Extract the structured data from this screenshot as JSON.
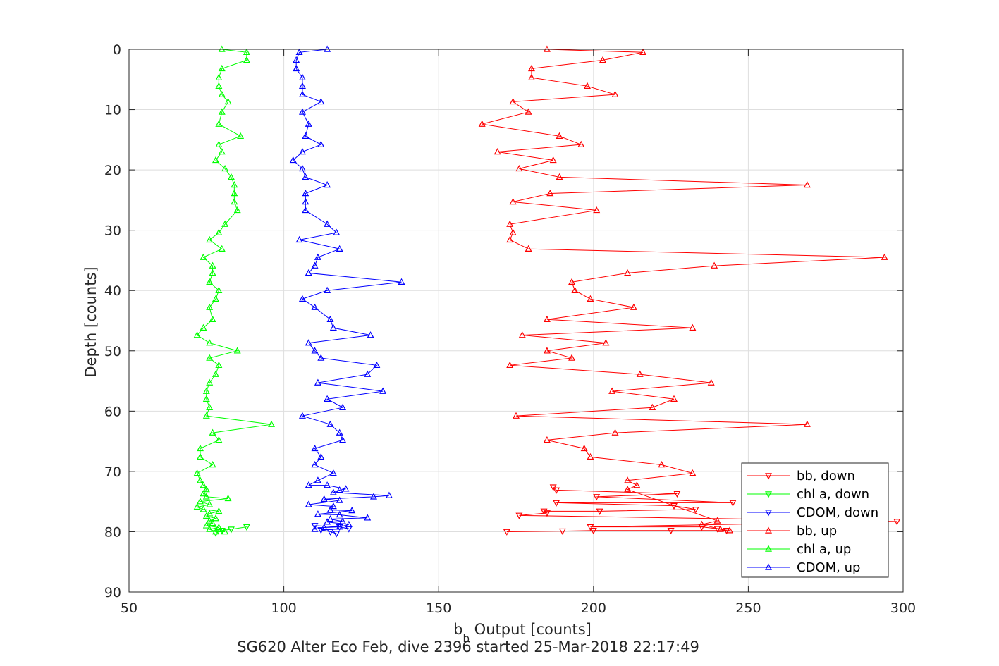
{
  "chart_data": {
    "type": "line",
    "xlabel": "b",
    "xlabel_sub": "b",
    "xlabel_rest": " Output [counts]",
    "ylabel": "Depth [counts]",
    "title_bottom": "SG620 Alter Eco Feb, dive 2396 started 25-Mar-2018 22:17:49",
    "xlim": [
      50,
      300
    ],
    "ylim": [
      0,
      90
    ],
    "y_reversed": true,
    "xticks": [
      50,
      100,
      150,
      200,
      250,
      300
    ],
    "yticks": [
      0,
      10,
      20,
      30,
      40,
      50,
      60,
      70,
      80,
      90
    ],
    "grid": true,
    "legend_position": "bottom-right",
    "colors": {
      "red": "#ff0000",
      "green": "#00ff00",
      "blue": "#0000ff"
    },
    "series": [
      {
        "name": "bb, down",
        "color": "#ff0000",
        "marker": "triangle-down",
        "points": [
          [
            172,
            80
          ],
          [
            190,
            79.9
          ],
          [
            200,
            79.8
          ],
          [
            225,
            79.8
          ],
          [
            243,
            79.8
          ],
          [
            240,
            79.5
          ],
          [
            235,
            79.2
          ],
          [
            199,
            79.2
          ],
          [
            298,
            78.3
          ],
          [
            176,
            77.3
          ],
          [
            185,
            76.9
          ],
          [
            184,
            76.6
          ],
          [
            202,
            76.6
          ],
          [
            233,
            76.3
          ],
          [
            226,
            75.7
          ],
          [
            188,
            75.2
          ],
          [
            245,
            75.2
          ],
          [
            201,
            74.2
          ],
          [
            227,
            73.7
          ],
          [
            188,
            73.1
          ],
          [
            187,
            72.6
          ]
        ]
      },
      {
        "name": "chl a, down",
        "color": "#00ff00",
        "marker": "triangle-down",
        "points": [
          [
            78,
            80.2
          ],
          [
            80,
            79.8
          ],
          [
            83,
            79.6
          ],
          [
            88,
            79.2
          ]
        ]
      },
      {
        "name": "CDOM, down",
        "color": "#0000ff",
        "marker": "triangle-down",
        "points": [
          [
            117,
            80.3
          ],
          [
            115,
            80
          ],
          [
            112,
            79.7
          ],
          [
            121,
            79.5
          ],
          [
            118,
            79.2
          ],
          [
            110,
            79
          ]
        ]
      },
      {
        "name": "bb, up",
        "color": "#ff0000",
        "marker": "triangle-up",
        "points": [
          [
            185,
            0
          ],
          [
            216,
            0.5
          ],
          [
            203,
            1.8
          ],
          [
            180,
            3.2
          ],
          [
            180,
            4.7
          ],
          [
            198,
            6.1
          ],
          [
            207,
            7.5
          ],
          [
            174,
            8.7
          ],
          [
            179,
            10.4
          ],
          [
            164,
            12.4
          ],
          [
            189,
            14.4
          ],
          [
            196,
            15.8
          ],
          [
            169,
            17
          ],
          [
            187,
            18.4
          ],
          [
            176,
            19.8
          ],
          [
            189,
            21.2
          ],
          [
            269,
            22.5
          ],
          [
            186,
            23.9
          ],
          [
            174,
            25.3
          ],
          [
            201,
            26.7
          ],
          [
            173,
            29
          ],
          [
            174,
            30.4
          ],
          [
            173,
            31.6
          ],
          [
            179,
            33.1
          ],
          [
            294,
            34.5
          ],
          [
            239,
            35.9
          ],
          [
            211,
            37.1
          ],
          [
            193,
            38.6
          ],
          [
            194,
            40
          ],
          [
            199,
            41.4
          ],
          [
            213,
            42.8
          ],
          [
            185,
            44.8
          ],
          [
            232,
            46.2
          ],
          [
            177,
            47.4
          ],
          [
            204,
            48.7
          ],
          [
            185,
            50
          ],
          [
            193,
            51.2
          ],
          [
            173,
            52.4
          ],
          [
            215,
            53.9
          ],
          [
            238,
            55.3
          ],
          [
            206,
            56.7
          ],
          [
            226,
            58
          ],
          [
            219,
            59.4
          ],
          [
            175,
            60.8
          ],
          [
            269,
            62.2
          ],
          [
            207,
            63.6
          ],
          [
            185,
            64.8
          ],
          [
            197,
            66.2
          ],
          [
            199,
            67.6
          ],
          [
            222,
            68.9
          ],
          [
            232,
            70.3
          ],
          [
            211,
            71.5
          ],
          [
            214,
            72.3
          ],
          [
            211,
            73
          ],
          [
            240,
            78.2
          ],
          [
            235,
            78.8
          ],
          [
            241,
            79.6
          ],
          [
            244,
            79.8
          ]
        ]
      },
      {
        "name": "chl a, up",
        "color": "#00ff00",
        "marker": "triangle-up",
        "points": [
          [
            80,
            0
          ],
          [
            88,
            0.5
          ],
          [
            88,
            1.8
          ],
          [
            80,
            3.2
          ],
          [
            79,
            4.7
          ],
          [
            79,
            6.1
          ],
          [
            80,
            7.5
          ],
          [
            82,
            8.7
          ],
          [
            80,
            10.4
          ],
          [
            79,
            12.4
          ],
          [
            86,
            14.4
          ],
          [
            79,
            15.8
          ],
          [
            80,
            17
          ],
          [
            78,
            18.4
          ],
          [
            81,
            19.8
          ],
          [
            83,
            21.2
          ],
          [
            84,
            22.5
          ],
          [
            84,
            23.9
          ],
          [
            84,
            25.3
          ],
          [
            85,
            26.7
          ],
          [
            81,
            29
          ],
          [
            79,
            30.4
          ],
          [
            76,
            31.6
          ],
          [
            80,
            33.1
          ],
          [
            74,
            34.5
          ],
          [
            77,
            35.9
          ],
          [
            77,
            37.1
          ],
          [
            76,
            38.6
          ],
          [
            79,
            40
          ],
          [
            78,
            41.4
          ],
          [
            76,
            42.8
          ],
          [
            77,
            44.8
          ],
          [
            74,
            46.2
          ],
          [
            72,
            47.4
          ],
          [
            76,
            48.7
          ],
          [
            85,
            50
          ],
          [
            76,
            51.2
          ],
          [
            79,
            52.4
          ],
          [
            78,
            53.9
          ],
          [
            76,
            55.3
          ],
          [
            75,
            56.7
          ],
          [
            75,
            58
          ],
          [
            76,
            59.4
          ],
          [
            75,
            60.8
          ],
          [
            96,
            62.2
          ],
          [
            77,
            63.6
          ],
          [
            79,
            64.8
          ],
          [
            73,
            66.2
          ],
          [
            73,
            67.6
          ],
          [
            77,
            68.9
          ],
          [
            72,
            70.3
          ],
          [
            73,
            71.5
          ],
          [
            74,
            72.3
          ],
          [
            75,
            73
          ],
          [
            74,
            73.7
          ],
          [
            75,
            74.2
          ],
          [
            82,
            74.5
          ],
          [
            73,
            75
          ],
          [
            76,
            75.5
          ],
          [
            72,
            75.9
          ],
          [
            74,
            76.3
          ],
          [
            79,
            76.6
          ],
          [
            76,
            77
          ],
          [
            75,
            77.4
          ],
          [
            78,
            77.8
          ],
          [
            76,
            78.2
          ],
          [
            77,
            78.6
          ],
          [
            75,
            79
          ],
          [
            79,
            79.3
          ],
          [
            76,
            79.6
          ],
          [
            78,
            80
          ],
          [
            81,
            80
          ]
        ]
      },
      {
        "name": "CDOM, up",
        "color": "#0000ff",
        "marker": "triangle-up",
        "points": [
          [
            114,
            0
          ],
          [
            105,
            0.5
          ],
          [
            104,
            1.8
          ],
          [
            104,
            3.2
          ],
          [
            106,
            4.7
          ],
          [
            106,
            6.1
          ],
          [
            106,
            7.5
          ],
          [
            112,
            8.7
          ],
          [
            106,
            10.4
          ],
          [
            108,
            12.4
          ],
          [
            107,
            14.4
          ],
          [
            112,
            15.8
          ],
          [
            106,
            17
          ],
          [
            103,
            18.4
          ],
          [
            106,
            19.8
          ],
          [
            107,
            21.2
          ],
          [
            114,
            22.5
          ],
          [
            107,
            23.9
          ],
          [
            107,
            25.3
          ],
          [
            107,
            26.7
          ],
          [
            114,
            29
          ],
          [
            117,
            30.4
          ],
          [
            105,
            31.6
          ],
          [
            118,
            33.1
          ],
          [
            111,
            34.5
          ],
          [
            110,
            35.9
          ],
          [
            108,
            37.1
          ],
          [
            138,
            38.6
          ],
          [
            114,
            40
          ],
          [
            106,
            41.4
          ],
          [
            110,
            42.8
          ],
          [
            115,
            44.8
          ],
          [
            116,
            46.2
          ],
          [
            128,
            47.4
          ],
          [
            108,
            48.7
          ],
          [
            110,
            50
          ],
          [
            112,
            51.2
          ],
          [
            130,
            52.4
          ],
          [
            127,
            53.9
          ],
          [
            111,
            55.3
          ],
          [
            132,
            56.7
          ],
          [
            114,
            58
          ],
          [
            119,
            59.4
          ],
          [
            106,
            60.8
          ],
          [
            115,
            62.2
          ],
          [
            118,
            63.6
          ],
          [
            119,
            64.8
          ],
          [
            110,
            66.2
          ],
          [
            112,
            67.6
          ],
          [
            110,
            68.9
          ],
          [
            116,
            70.3
          ],
          [
            111,
            71.5
          ],
          [
            108,
            72.3
          ],
          [
            114,
            72.3
          ],
          [
            120,
            72.9
          ],
          [
            118,
            73.1
          ],
          [
            116,
            73.5
          ],
          [
            134,
            74.0
          ],
          [
            129,
            74.2
          ],
          [
            113,
            74.6
          ],
          [
            118,
            74.8
          ],
          [
            108,
            75.5
          ],
          [
            116,
            75.8
          ],
          [
            115,
            76.4
          ],
          [
            122,
            76.5
          ],
          [
            111,
            77.1
          ],
          [
            118,
            77.2
          ],
          [
            127,
            77.7
          ],
          [
            115,
            77.9
          ],
          [
            119,
            78.3
          ],
          [
            114,
            78.4
          ],
          [
            121,
            78.8
          ],
          [
            118,
            79.2
          ],
          [
            113,
            79.3
          ],
          [
            110,
            79.6
          ]
        ]
      }
    ]
  }
}
